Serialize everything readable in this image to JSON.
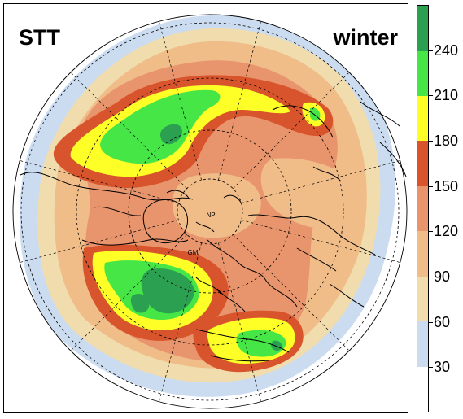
{
  "map": {
    "title": "STT",
    "season": "winter",
    "projection": "north polar stereographic",
    "pole_label": "NP",
    "meridian_label": "GM"
  },
  "legend": {
    "ticks": [
      "30",
      "60",
      "90",
      "120",
      "150",
      "180",
      "210",
      "240"
    ],
    "colors": [
      "#ffffff",
      "#ccdcf0",
      "#f0dcac",
      "#f0bc88",
      "#e8946c",
      "#d8542c",
      "#ffff28",
      "#46e646",
      "#2aa050"
    ]
  }
}
